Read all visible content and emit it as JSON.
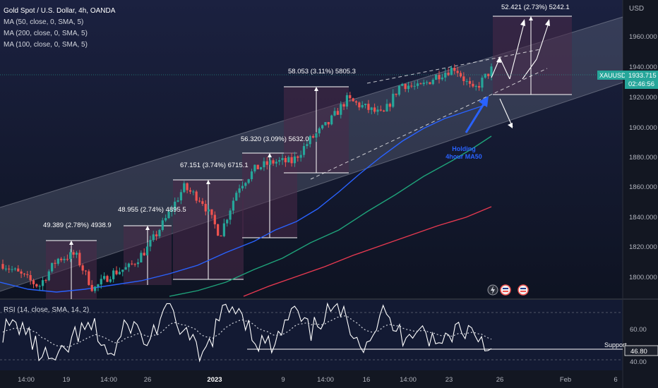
{
  "header": {
    "title": "Gold Spot / U.S. Dollar, 4h, OANDA",
    "indicators": [
      "MA (50, close, 0, SMA, 5)",
      "MA (200, close, 0, SMA, 5)",
      "MA (100, close, 0, SMA, 5)"
    ]
  },
  "price_axis": {
    "currency": "USD",
    "ticks": [
      "1960.000",
      "1940.000",
      "1920.000",
      "1900.000",
      "1880.000",
      "1860.000",
      "1840.000",
      "1820.000",
      "1800.000"
    ],
    "symbol_tag": "XAUUSD",
    "last_price": "1933.715",
    "countdown": "02:46:56"
  },
  "rsi": {
    "title": "RSI (14, close, SMA, 14, 2)",
    "ticks": [
      "60.00",
      "40.00"
    ],
    "support_label": "Support",
    "value": "46.80"
  },
  "time_axis": {
    "labels": [
      "14:00",
      "19",
      "14:00",
      "26",
      "2023",
      "9",
      "14:00",
      "16",
      "14:00",
      "23",
      "26",
      "Feb",
      "6"
    ]
  },
  "annotations": {
    "measures": [
      "49.389 (2.78%) 4938.9",
      "48.955 (2.74%) 4895.5",
      "67.151 (3.74%) 6715.1",
      "56.320 (3.09%) 5632.0",
      "58.053 (3.11%) 5805.3",
      "52.421 (2.73%) 5242.1"
    ],
    "holding_note": [
      "Holding",
      "4hour MA50"
    ]
  },
  "colors": {
    "background": "#131722",
    "bull": "#26a69a",
    "bear": "#ef5350",
    "ma50": "#2962ff",
    "ma100": "#e53950",
    "ma200": "#1fa37a",
    "channel": "#b2b5be",
    "measure_box": "#4a2a48",
    "last_price_bg": "#26a69a"
  },
  "chart_data": [
    {
      "type": "candlestick",
      "title": "Gold Spot / U.S. Dollar, 4h, OANDA",
      "ylim": [
        1790,
        1975
      ],
      "close_path": [
        {
          "t": "Dec 13",
          "close": 1812
        },
        {
          "t": "Dec 16",
          "close": 1805
        },
        {
          "t": "Dec 19",
          "close": 1798
        },
        {
          "t": "Dec 20",
          "close": 1815
        },
        {
          "t": "Dec 22",
          "close": 1818
        },
        {
          "t": "Dec 23",
          "close": 1796
        },
        {
          "t": "Dec 26",
          "close": 1806
        },
        {
          "t": "Dec 28",
          "close": 1810
        },
        {
          "t": "Dec 29",
          "close": 1822
        },
        {
          "t": "Jan 2",
          "close": 1840
        },
        {
          "t": "Jan 3",
          "close": 1860
        },
        {
          "t": "Jan 4",
          "close": 1852
        },
        {
          "t": "Jan 5",
          "close": 1830
        },
        {
          "t": "Jan 6",
          "close": 1860
        },
        {
          "t": "Jan 9",
          "close": 1872
        },
        {
          "t": "Jan 10",
          "close": 1876
        },
        {
          "t": "Jan 11",
          "close": 1876
        },
        {
          "t": "Jan 12",
          "close": 1890
        },
        {
          "t": "Jan 13",
          "close": 1900
        },
        {
          "t": "Jan 16",
          "close": 1915
        },
        {
          "t": "Jan 17",
          "close": 1910
        },
        {
          "t": "Jan 18",
          "close": 1905
        },
        {
          "t": "Jan 19",
          "close": 1925
        },
        {
          "t": "Jan 20",
          "close": 1922
        },
        {
          "t": "Jan 23",
          "close": 1930
        },
        {
          "t": "Jan 24",
          "close": 1935
        },
        {
          "t": "Jan 25",
          "close": 1920
        },
        {
          "t": "Jan 26",
          "close": 1933.715
        }
      ],
      "series": [
        {
          "name": "MA (50, close, 0, SMA, 5)",
          "values": [
            {
              "t": "Dec 19",
              "v": 1796
            },
            {
              "t": "Dec 29",
              "v": 1810
            },
            {
              "t": "Jan 6",
              "v": 1825
            },
            {
              "t": "Jan 12",
              "v": 1858
            },
            {
              "t": "Jan 19",
              "v": 1898
            },
            {
              "t": "Jan 26",
              "v": 1918
            }
          ]
        },
        {
          "name": "MA (200, close, 0, SMA, 5)",
          "values": [
            {
              "t": "Dec 28",
              "v": 1790
            },
            {
              "t": "Jan 6",
              "v": 1806
            },
            {
              "t": "Jan 12",
              "v": 1828
            },
            {
              "t": "Jan 19",
              "v": 1862
            },
            {
              "t": "Jan 26",
              "v": 1893
            }
          ]
        },
        {
          "name": "MA (100, close, 0, SMA, 5)",
          "values": [
            {
              "t": "Jan 3",
              "v": 1792
            },
            {
              "t": "Jan 9",
              "v": 1805
            },
            {
              "t": "Jan 17",
              "v": 1825
            },
            {
              "t": "Jan 26",
              "v": 1847
            }
          ]
        }
      ]
    },
    {
      "type": "line",
      "title": "RSI (14, close, SMA, 14, 2)",
      "ylim": [
        35,
        75
      ],
      "values": [
        58,
        62,
        45,
        38,
        55,
        60,
        42,
        64,
        50,
        72,
        58,
        40,
        66,
        74,
        52,
        48,
        70,
        56,
        72,
        65,
        50,
        68,
        55,
        62,
        48,
        60,
        58,
        46.8
      ],
      "support": 47
    }
  ]
}
